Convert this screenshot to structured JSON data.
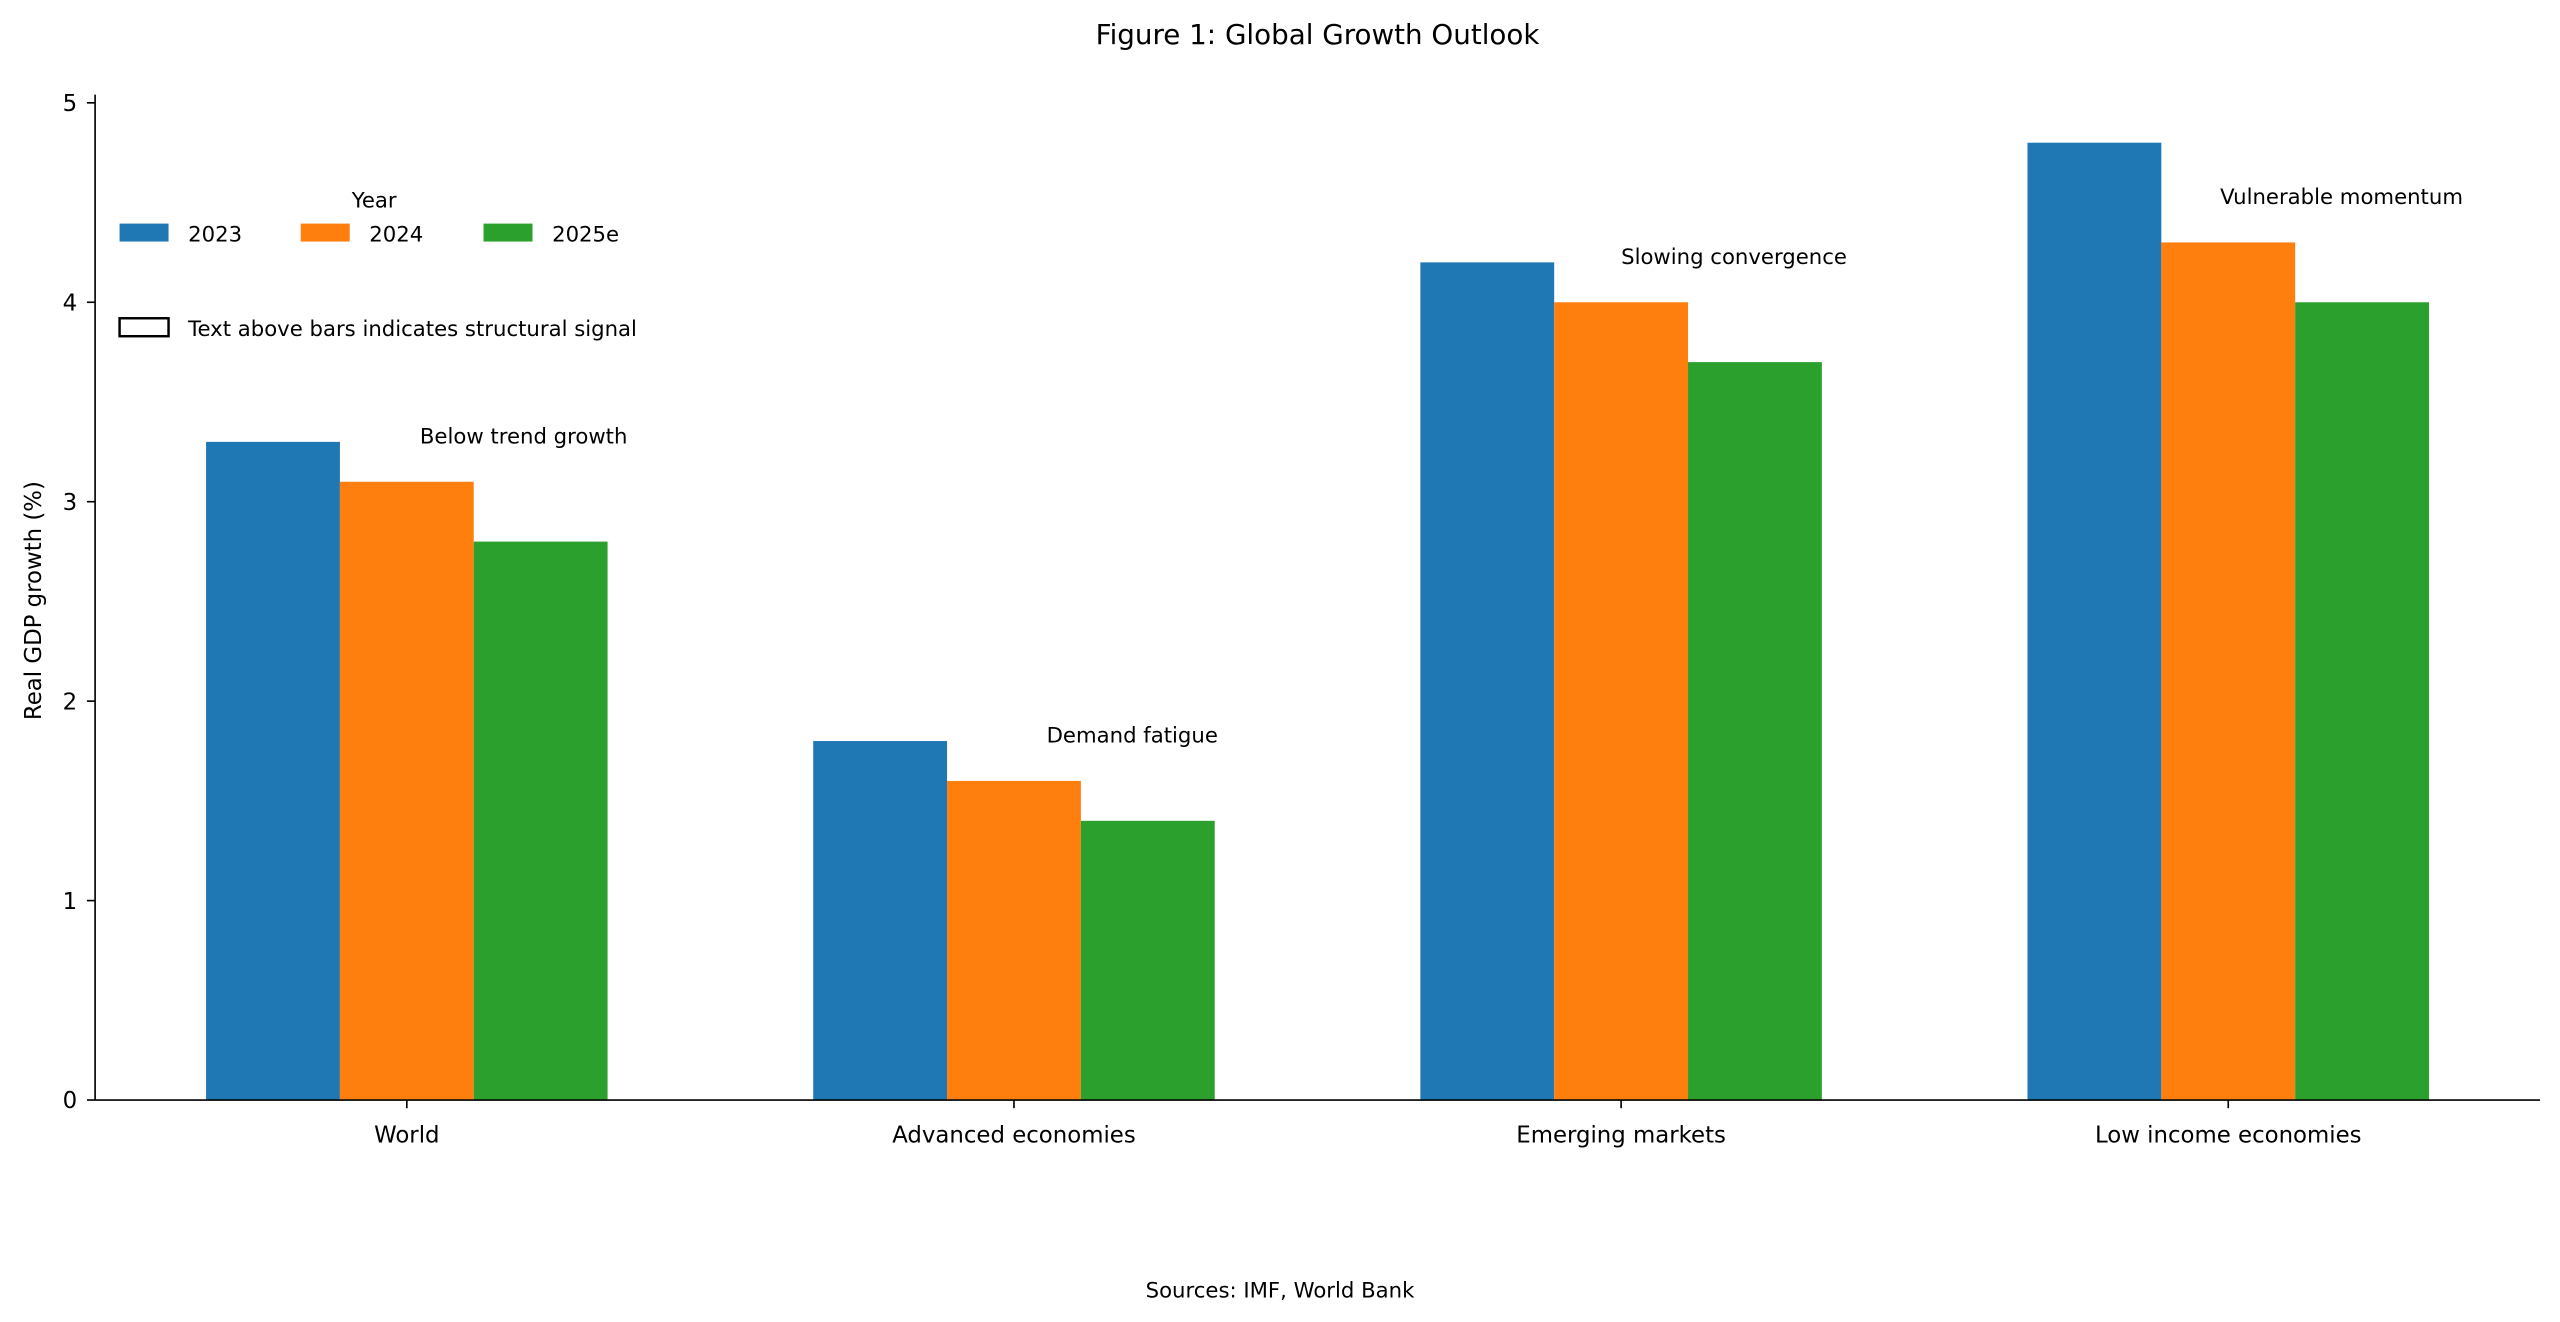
{
  "chart_data": {
    "type": "bar",
    "title": "Figure 1: Global Growth Outlook",
    "xlabel": "",
    "ylabel": "Real GDP growth (%)",
    "ylim": [
      0,
      5.05
    ],
    "yticks": [
      "0",
      "1",
      "2",
      "3",
      "4",
      "5"
    ],
    "categories": [
      "World",
      "Advanced economies",
      "Emerging markets",
      "Low income economies"
    ],
    "series": [
      {
        "name": "2023",
        "color": "#1f77b4",
        "values": [
          3.3,
          1.8,
          4.2,
          4.8
        ]
      },
      {
        "name": "2024",
        "color": "#ff7f0e",
        "values": [
          3.1,
          1.6,
          4.0,
          4.3
        ]
      },
      {
        "name": "2025e",
        "color": "#2ca02c",
        "values": [
          2.8,
          1.4,
          3.7,
          4.0
        ]
      }
    ],
    "annotations": [
      "Below trend growth",
      "Demand fatigue",
      "Slowing convergence",
      "Vulnerable momentum"
    ],
    "legend": {
      "title": "Year",
      "placement": "upper-left",
      "note": "Text above bars indicates structural signal"
    },
    "grid": false,
    "source": "Sources: IMF, World Bank"
  }
}
